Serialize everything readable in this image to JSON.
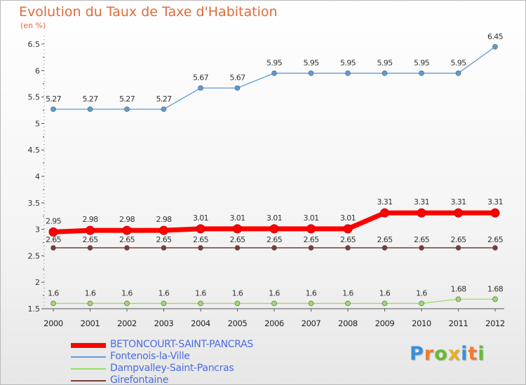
{
  "chart_data": {
    "type": "line",
    "title": "Evolution du Taux de Taxe d'Habitation",
    "subtitle": "(en %)",
    "x": [
      "2000",
      "2001",
      "2002",
      "2003",
      "2004",
      "2005",
      "2006",
      "2007",
      "2008",
      "2009",
      "2010",
      "2011",
      "2012"
    ],
    "ylim": [
      1.5,
      6.5
    ],
    "yticks": [
      "1.5",
      "2",
      "2.5",
      "3",
      "3.5",
      "4",
      "4.5",
      "5",
      "5.5",
      "6",
      "6.5"
    ],
    "grid": false,
    "legend_position": "bottom-left",
    "series": [
      {
        "name": "BETONCOURT-SAINT-PANCRAS",
        "color": "#ff0000",
        "values": [
          2.95,
          2.98,
          2.98,
          2.98,
          3.01,
          3.01,
          3.01,
          3.01,
          3.01,
          3.31,
          3.31,
          3.31,
          3.31
        ],
        "labels": [
          "2.95",
          "2.98",
          "2.98",
          "2.98",
          "3.01",
          "3.01",
          "3.01",
          "3.01",
          "3.01",
          "3.31",
          "3.31",
          "3.31",
          "3.31"
        ]
      },
      {
        "name": "Fontenois-la-Ville",
        "color": "#5b9bd5",
        "values": [
          5.27,
          5.27,
          5.27,
          5.27,
          5.67,
          5.67,
          5.95,
          5.95,
          5.95,
          5.95,
          5.95,
          5.95,
          6.45
        ],
        "labels": [
          "5.27",
          "5.27",
          "5.27",
          "5.27",
          "5.67",
          "5.67",
          "5.95",
          "5.95",
          "5.95",
          "5.95",
          "5.95",
          "5.95",
          "6.45"
        ]
      },
      {
        "name": "Dampvalley-Saint-Pancras",
        "color": "#99dd66",
        "values": [
          1.6,
          1.6,
          1.6,
          1.6,
          1.6,
          1.6,
          1.6,
          1.6,
          1.6,
          1.6,
          1.6,
          1.68,
          1.68
        ],
        "labels": [
          "1.6",
          "1.6",
          "1.6",
          "1.6",
          "1.6",
          "1.6",
          "1.6",
          "1.6",
          "1.6",
          "1.6",
          "1.6",
          "1.68",
          "1.68"
        ]
      },
      {
        "name": "Girefontaine",
        "color": "#7a3b3b",
        "values": [
          2.65,
          2.65,
          2.65,
          2.65,
          2.65,
          2.65,
          2.65,
          2.65,
          2.65,
          2.65,
          2.65,
          2.65,
          2.65
        ],
        "labels": [
          "2.65",
          "2.65",
          "2.65",
          "2.65",
          "2.65",
          "2.65",
          "2.65",
          "2.65",
          "2.65",
          "2.65",
          "2.65",
          "2.65",
          "2.65"
        ]
      }
    ]
  },
  "brand": {
    "letters": [
      "P",
      "r",
      "o",
      "x",
      "i",
      "t",
      "i"
    ],
    "colors": [
      "#3a8fd8",
      "#f07b2a",
      "#66bb33",
      "#e8b020",
      "#3a8fd8",
      "#f07b2a",
      "#66bb33"
    ]
  }
}
